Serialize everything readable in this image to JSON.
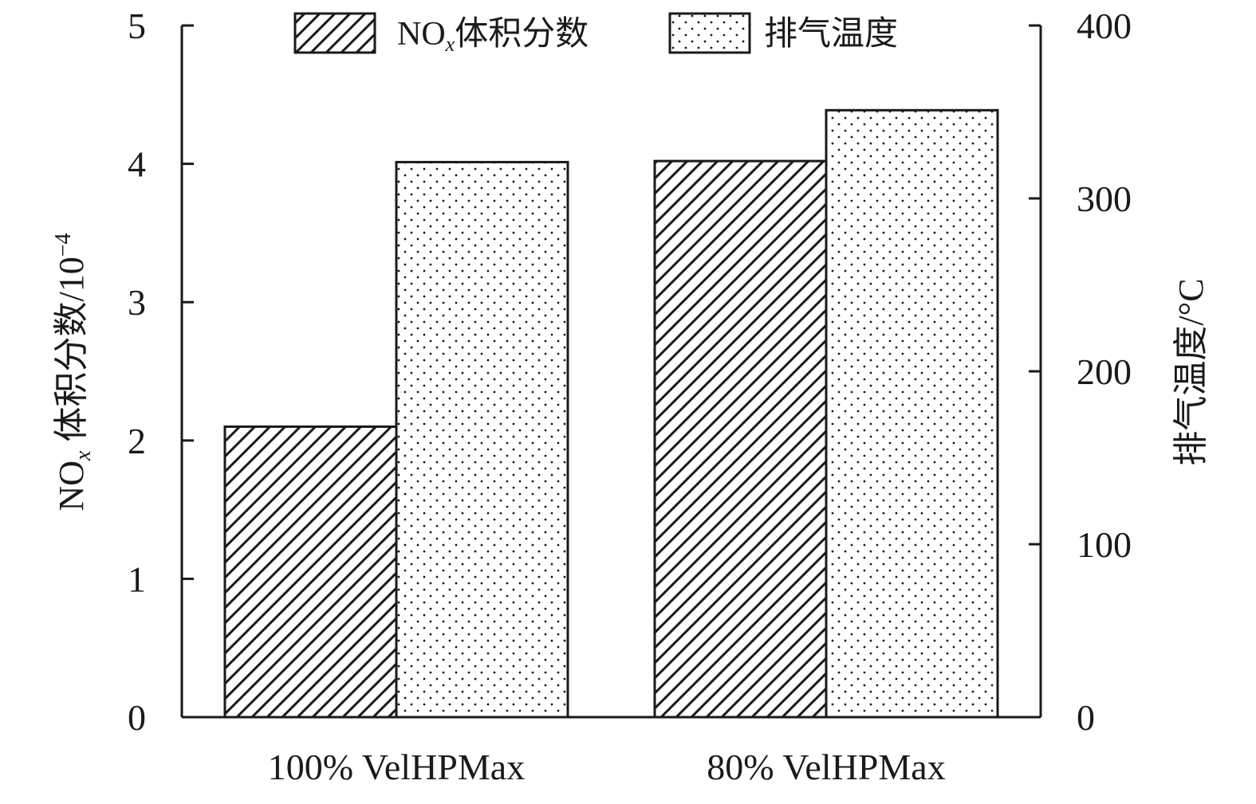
{
  "chart_data": {
    "type": "bar",
    "categories": [
      "100% VelHPMax",
      "80% VelHPMax"
    ],
    "series": [
      {
        "name": "NOx体积分数",
        "name_parts": {
          "base": "NO",
          "sub": "x",
          "rest": "体积分数"
        },
        "axis": "left",
        "pattern": "hatch",
        "values": [
          2.1,
          4.02
        ]
      },
      {
        "name": "排气温度",
        "axis": "right",
        "pattern": "dots",
        "values": [
          321,
          351
        ]
      }
    ],
    "y_left": {
      "label": "NOx体积分数/10−4",
      "label_parts": {
        "base": "NO",
        "sub": "x",
        "rest": " 体积分数/10",
        "sup": "−4"
      },
      "lim": [
        0,
        5
      ],
      "ticks": [
        0,
        1,
        2,
        3,
        4,
        5
      ]
    },
    "y_right": {
      "label": "排气温度/°C",
      "lim": [
        0,
        400
      ],
      "ticks": [
        0,
        100,
        200,
        300,
        400
      ]
    },
    "legend": {
      "placement": "top-center"
    },
    "grid": false,
    "colors": {
      "ink": "#1a1a1a",
      "fill": "#ffffff"
    }
  }
}
